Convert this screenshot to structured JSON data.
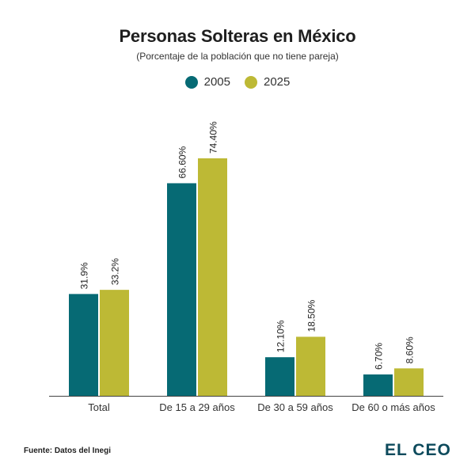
{
  "chart_data": {
    "type": "bar",
    "title": "Personas Solteras en México",
    "subtitle": "(Porcentaje de la población que no tiene pareja)",
    "categories": [
      "Total",
      "De 15 a 29 años",
      "De 30 a 59 años",
      "De 60 o más años"
    ],
    "series": [
      {
        "name": "2005",
        "color": "#066a74",
        "values": [
          31.9,
          66.6,
          12.1,
          6.7
        ],
        "labels": [
          "31.9%",
          "66.60%",
          "12.10%",
          "6.70%"
        ]
      },
      {
        "name": "2025",
        "color": "#bdb935",
        "values": [
          33.2,
          74.4,
          18.5,
          8.6
        ],
        "labels": [
          "33.2%",
          "74.40%",
          "18.50%",
          "8.60%"
        ]
      }
    ],
    "xlabel": "",
    "ylabel": "",
    "ylim": [
      0,
      80
    ],
    "grid": false,
    "legend": "top-center"
  },
  "footer": {
    "source": "Fuente: Datos del Inegi",
    "logo": "EL CEO"
  }
}
